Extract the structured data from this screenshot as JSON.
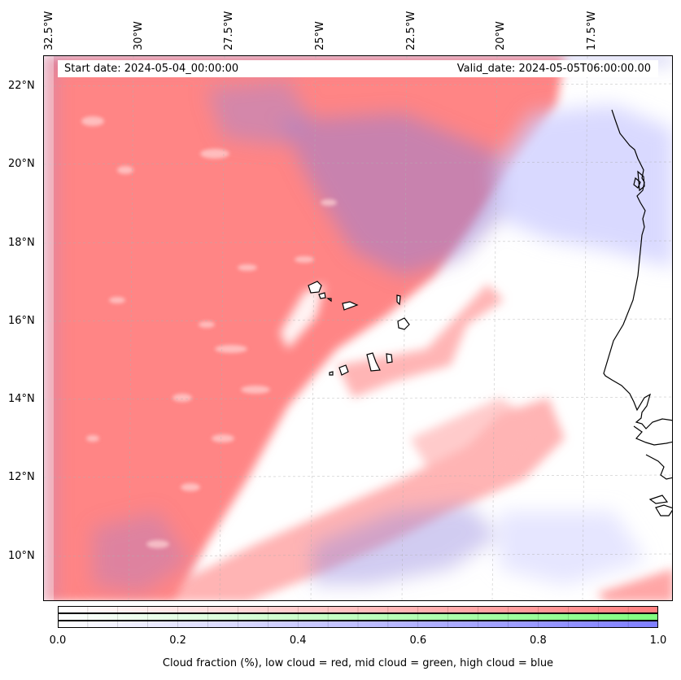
{
  "map": {
    "start_date": "Start date: 2024-05-04_00:00:00",
    "valid_date": "Valid_date: 2024-05-05T06:00:00.00",
    "lon_ticks": [
      "32.5°W",
      "30°W",
      "27.5°W",
      "25°W",
      "22.5°W",
      "20°W",
      "17.5°W"
    ],
    "lat_ticks": [
      "22°N",
      "20°N",
      "18°N",
      "16°N",
      "14°N",
      "12°N",
      "10°N"
    ],
    "extent": {
      "lon": [
        -32.5,
        -15.0
      ],
      "lat": [
        8.8,
        22.8
      ]
    },
    "gridlines": true,
    "coastline_color": "#000000"
  },
  "colorbar": {
    "ticks": [
      "0.0",
      "0.2",
      "0.4",
      "0.6",
      "0.8",
      "1.0"
    ],
    "range": [
      0.0,
      1.0
    ],
    "label": "Cloud fraction (%), low cloud = red, mid cloud = green, high cloud = blue",
    "colors": {
      "low": "#ff7f7f",
      "mid": "#7fff7f",
      "high": "#7f7fff"
    }
  }
}
